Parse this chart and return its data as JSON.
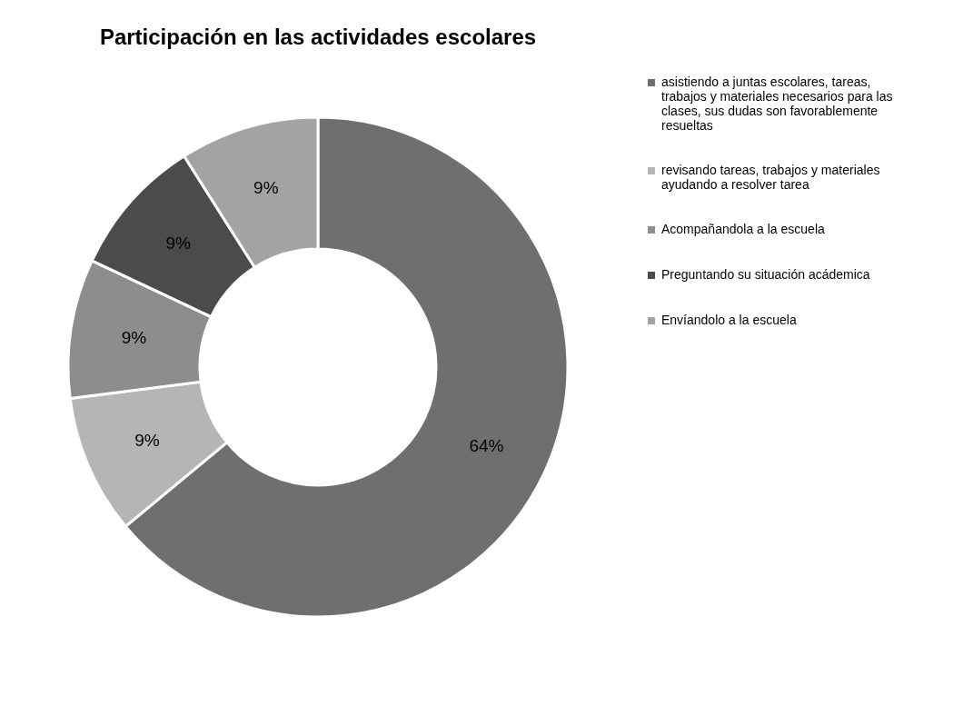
{
  "chart_data": {
    "type": "donut",
    "title": "Participación en las actividades escolares",
    "categories": [
      "asistiendo a juntas escolares, tareas, trabajos y materiales necesarios para las clases, sus dudas son favorablemente resueltas",
      "revisando tareas, trabajos y materiales ayudando a resolver tarea",
      "Acompañandola a la escuela",
      "Preguntando su situación acádemica",
      "Envíandolo a la escuela"
    ],
    "values": [
      64,
      9,
      9,
      9,
      9
    ],
    "value_labels": [
      "64%",
      "9%",
      "9%",
      "9%",
      "9%"
    ],
    "colors": [
      "#6f6f6f",
      "#b5b5b5",
      "#8d8d8d",
      "#4b4b4b",
      "#a3a3a3"
    ],
    "legend": "right"
  }
}
